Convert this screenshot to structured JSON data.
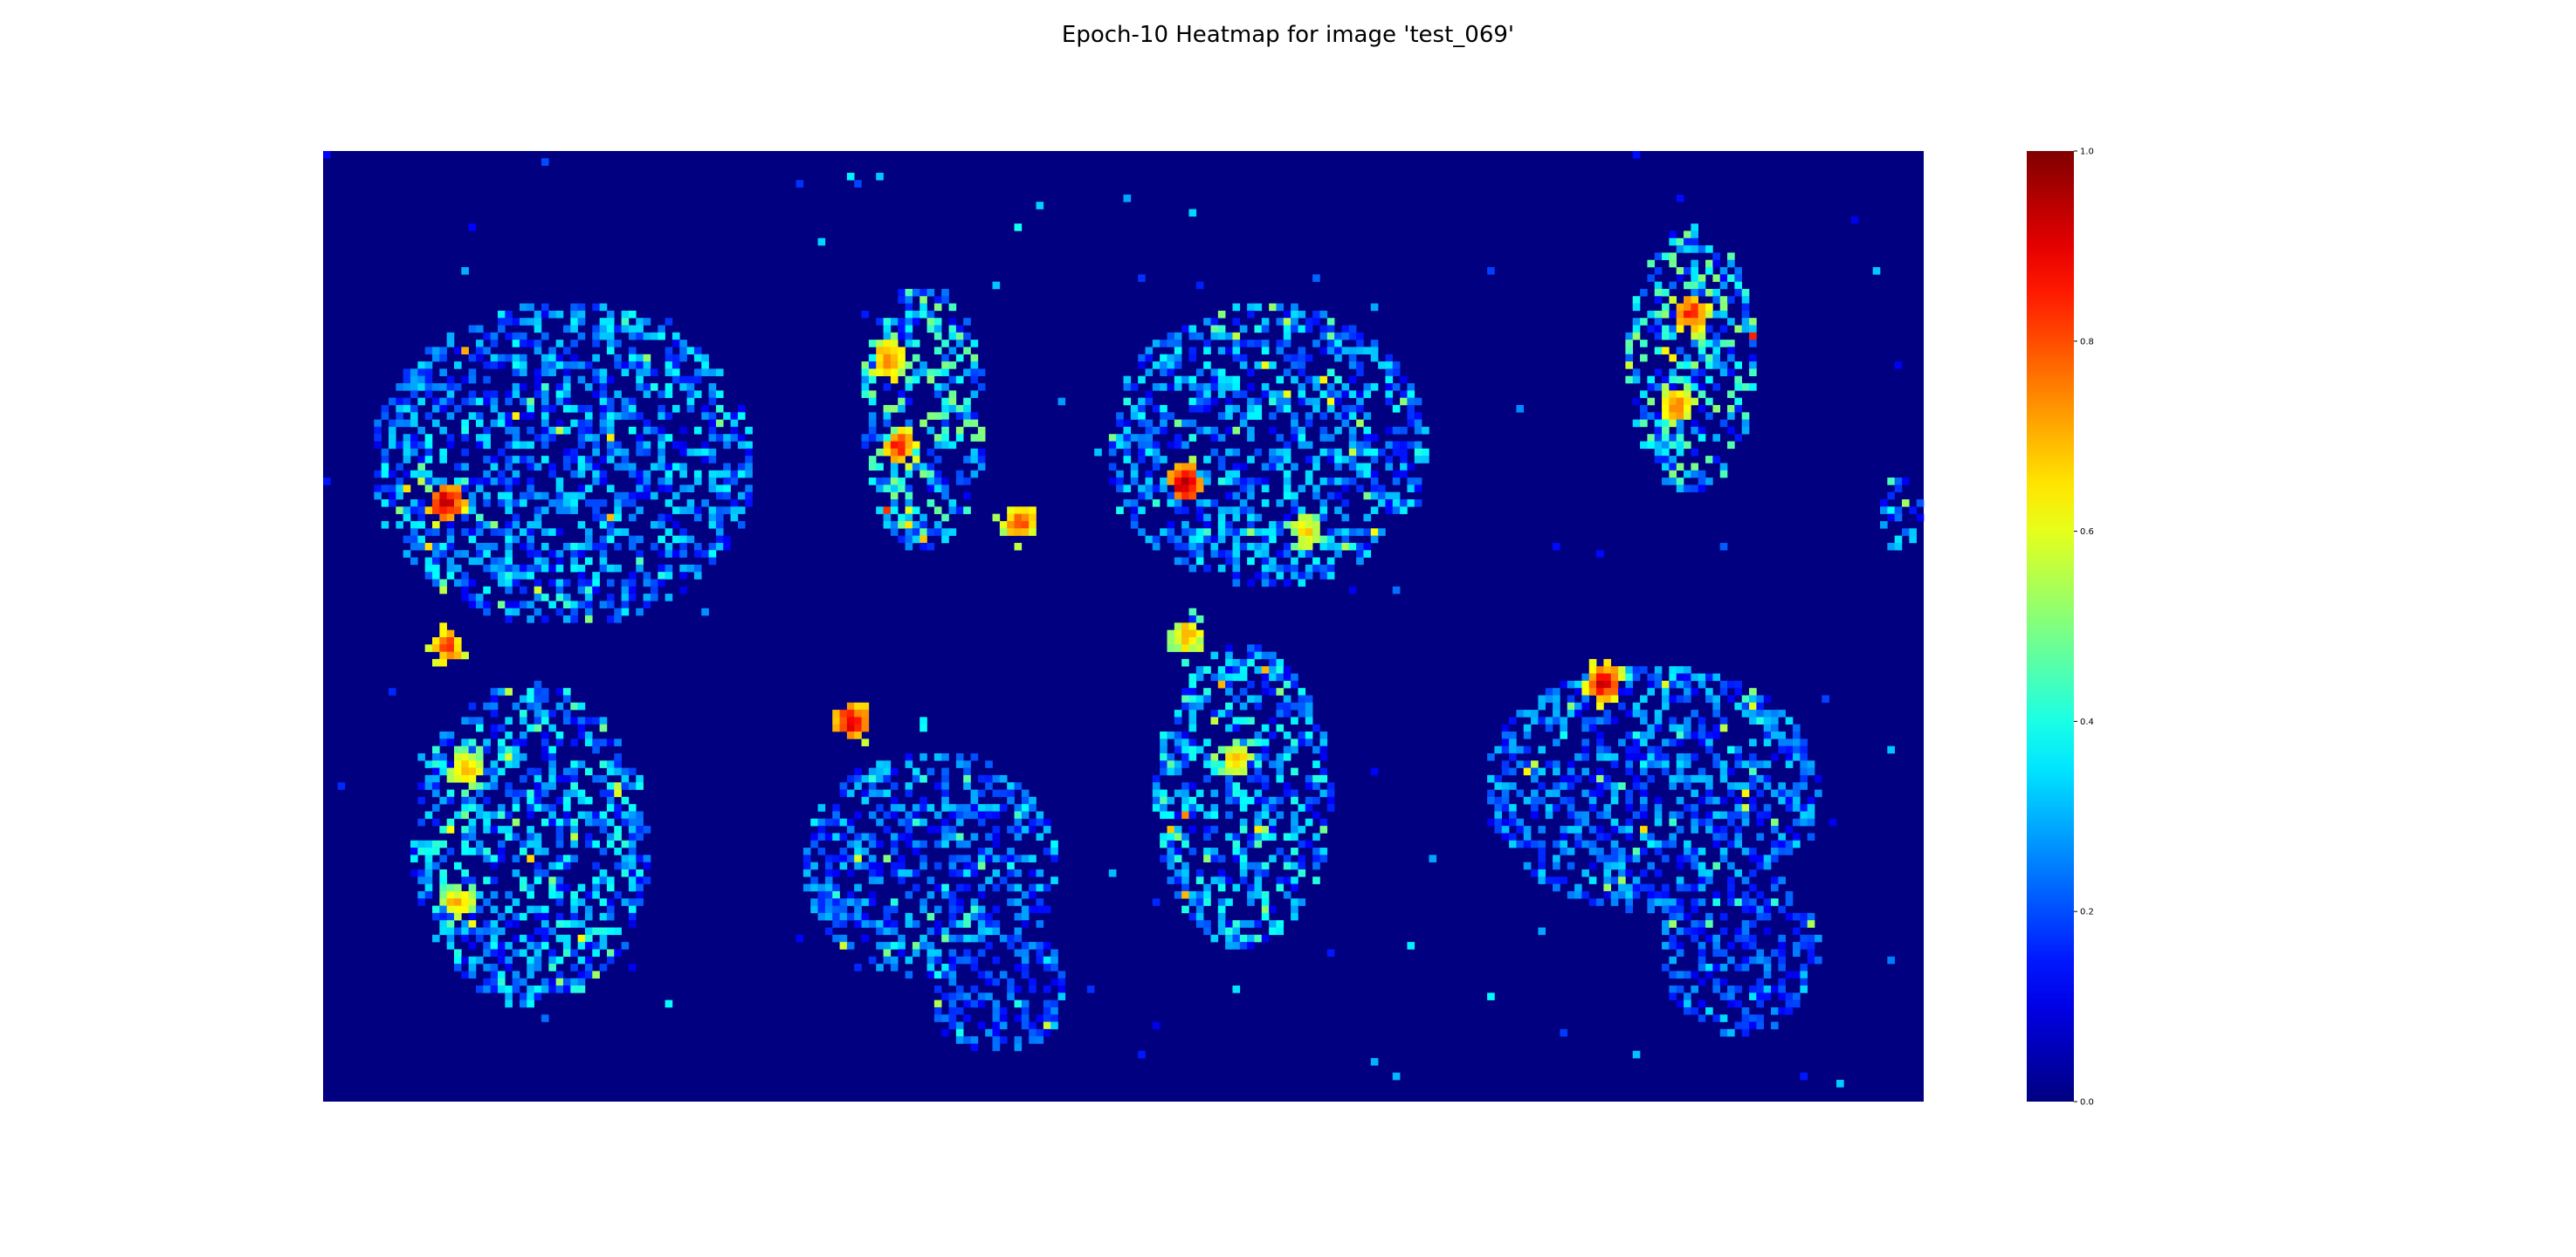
{
  "figure": {
    "title": "Epoch-10 Heatmap for image 'test_069'"
  },
  "chart_data": {
    "type": "heatmap",
    "title": "Epoch-10 Heatmap for image 'test_069'",
    "xlabel": "",
    "ylabel": "",
    "axes_visible": false,
    "grid": false,
    "colormap": "jet",
    "background_value": 0.0,
    "value_range": [
      0.0,
      1.0
    ],
    "colorbar": {
      "placement": "right",
      "ticks": [
        0.0,
        0.2,
        0.4,
        0.6,
        0.8,
        1.0
      ],
      "tick_labels": [
        "0.0",
        "0.2",
        "0.4",
        "0.6",
        "0.8",
        "1.0"
      ]
    },
    "colors": {
      "low": "#00007f",
      "mid_low": "#0080ff",
      "mid": "#7dff7a",
      "mid_high": "#ff9400",
      "high": "#7f0000"
    },
    "structure": "four tissue sections, each with an upper lobe and a lower lobe; activations mostly low (0.1–0.4) with scattered hot spots",
    "regions": [
      {
        "name": "section-1-upper-lobe",
        "cx": 0.15,
        "cy": 0.33,
        "rx": 0.12,
        "ry": 0.17,
        "level": 0.28
      },
      {
        "name": "section-1-lower-lobe",
        "cx": 0.13,
        "cy": 0.73,
        "rx": 0.075,
        "ry": 0.17,
        "level": 0.32
      },
      {
        "name": "section-2-upper-lobe",
        "cx": 0.375,
        "cy": 0.28,
        "rx": 0.04,
        "ry": 0.14,
        "level": 0.42
      },
      {
        "name": "section-2-lower-lobe",
        "cx": 0.38,
        "cy": 0.75,
        "rx": 0.08,
        "ry": 0.12,
        "level": 0.24
      },
      {
        "name": "section-2-tail",
        "cx": 0.42,
        "cy": 0.88,
        "rx": 0.045,
        "ry": 0.07,
        "level": 0.18
      },
      {
        "name": "section-3-upper-lobe",
        "cx": 0.59,
        "cy": 0.31,
        "rx": 0.1,
        "ry": 0.15,
        "level": 0.28
      },
      {
        "name": "section-3-lower-lobe",
        "cx": 0.575,
        "cy": 0.68,
        "rx": 0.055,
        "ry": 0.16,
        "level": 0.32
      },
      {
        "name": "section-4-upper-lobe",
        "cx": 0.855,
        "cy": 0.22,
        "rx": 0.04,
        "ry": 0.14,
        "level": 0.42
      },
      {
        "name": "section-4-lower-lobe",
        "cx": 0.83,
        "cy": 0.67,
        "rx": 0.105,
        "ry": 0.13,
        "level": 0.24
      },
      {
        "name": "section-4-tail",
        "cx": 0.885,
        "cy": 0.84,
        "rx": 0.05,
        "ry": 0.09,
        "level": 0.18
      },
      {
        "name": "right-edge-fragment",
        "cx": 0.985,
        "cy": 0.38,
        "rx": 0.014,
        "ry": 0.04,
        "level": 0.35
      }
    ],
    "hotspots": [
      {
        "name": "hotspot-1",
        "x": 0.077,
        "y": 0.37,
        "value": 1.0
      },
      {
        "name": "hotspot-2",
        "x": 0.538,
        "y": 0.35,
        "value": 1.0
      },
      {
        "name": "hotspot-3",
        "x": 0.33,
        "y": 0.6,
        "value": 0.95
      },
      {
        "name": "hotspot-4",
        "x": 0.8,
        "y": 0.56,
        "value": 0.95
      },
      {
        "name": "hotspot-5",
        "x": 0.353,
        "y": 0.22,
        "value": 0.82
      },
      {
        "name": "hotspot-6",
        "x": 0.36,
        "y": 0.31,
        "value": 0.9
      },
      {
        "name": "hotspot-7",
        "x": 0.855,
        "y": 0.17,
        "value": 0.88
      },
      {
        "name": "hotspot-8",
        "x": 0.845,
        "y": 0.27,
        "value": 0.8
      },
      {
        "name": "hotspot-9",
        "x": 0.078,
        "y": 0.52,
        "value": 0.85
      },
      {
        "name": "hotspot-10",
        "x": 0.09,
        "y": 0.65,
        "value": 0.75
      },
      {
        "name": "hotspot-11",
        "x": 0.085,
        "y": 0.79,
        "value": 0.7
      },
      {
        "name": "hotspot-12",
        "x": 0.54,
        "y": 0.51,
        "value": 0.75
      },
      {
        "name": "hotspot-13",
        "x": 0.57,
        "y": 0.64,
        "value": 0.72
      },
      {
        "name": "hotspot-14",
        "x": 0.435,
        "y": 0.39,
        "value": 0.85
      },
      {
        "name": "hotspot-15",
        "x": 0.615,
        "y": 0.4,
        "value": 0.7
      }
    ]
  }
}
